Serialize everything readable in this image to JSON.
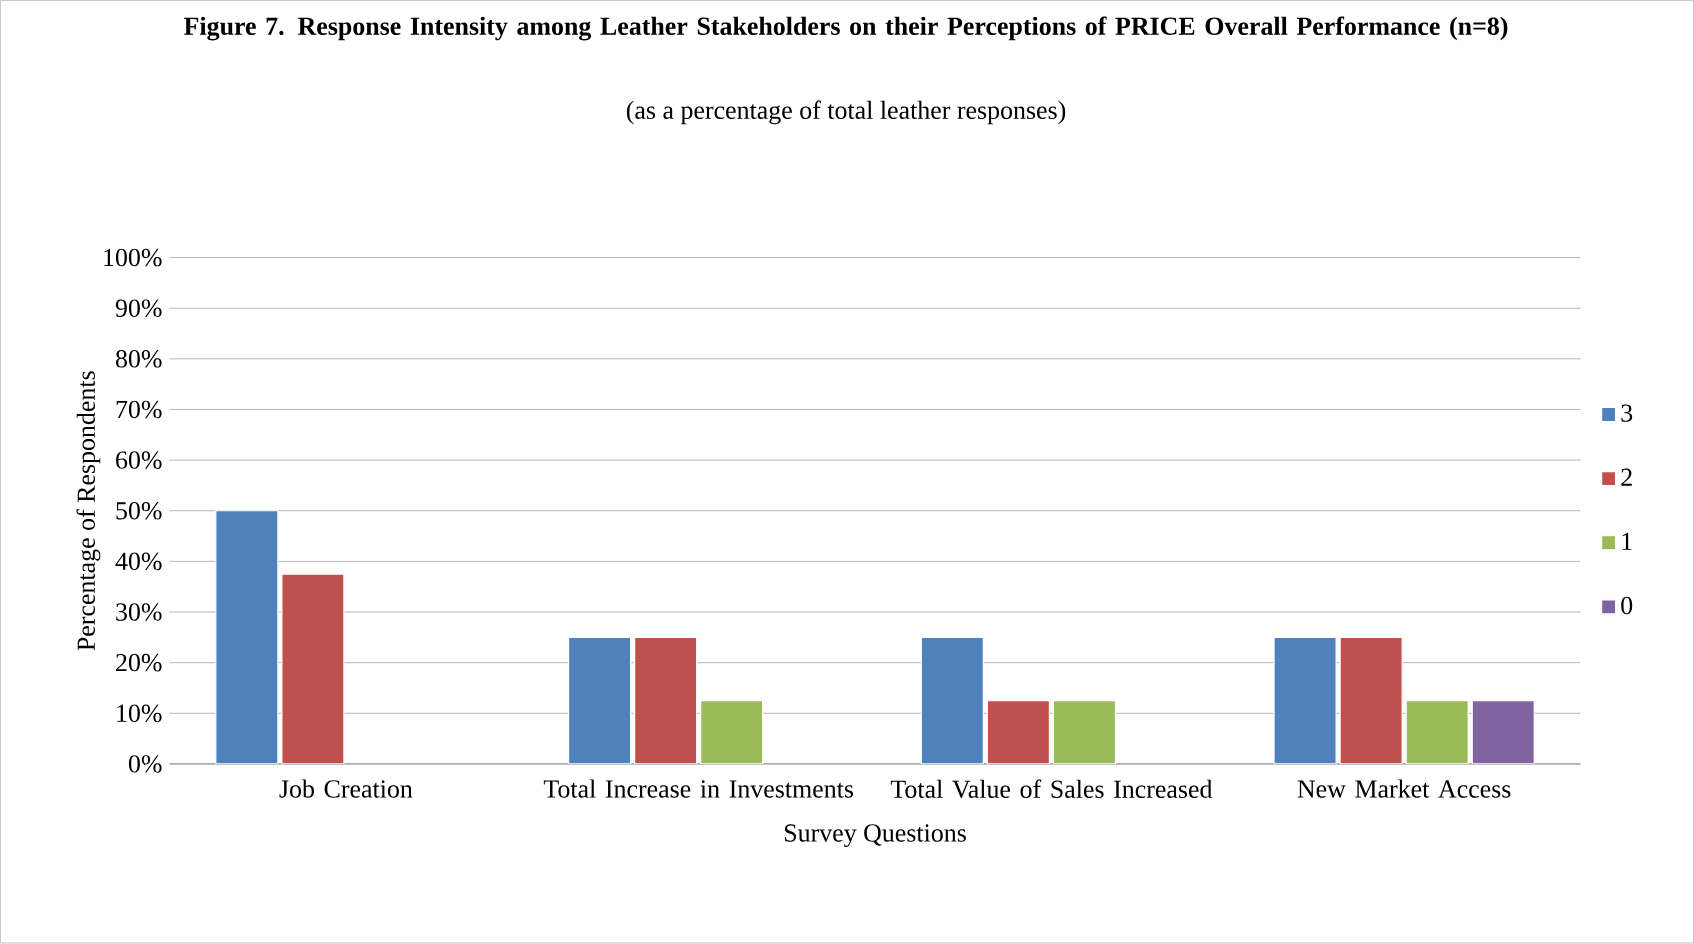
{
  "chart_data": {
    "type": "bar",
    "title": "Figure 7. Response Intensity among Leather Stakeholders on their Perceptions of PRICE Overall Performance (n=8)",
    "subtitle": "(as a percentage of total leather responses)",
    "xlabel": "Survey Questions",
    "ylabel": "Percentage of Respondents",
    "categories": [
      "Job Creation",
      "Total Increase in Investments",
      "Total Value of Sales Increased",
      "New Market Access"
    ],
    "series": [
      {
        "name": "3",
        "color": "#4f81bd",
        "values": [
          50,
          25,
          25,
          25
        ]
      },
      {
        "name": "2",
        "color": "#c0504d",
        "values": [
          37.5,
          25,
          12.5,
          25
        ]
      },
      {
        "name": "1",
        "color": "#9bbb59",
        "values": [
          null,
          12.5,
          12.5,
          12.5
        ]
      },
      {
        "name": "0",
        "color": "#8064a2",
        "values": [
          null,
          null,
          null,
          12.5
        ]
      }
    ],
    "ylim": [
      0,
      100
    ],
    "yticks": [
      {
        "value": 0,
        "label": "0%"
      },
      {
        "value": 10,
        "label": "10%"
      },
      {
        "value": 20,
        "label": "20%"
      },
      {
        "value": 30,
        "label": "30%"
      },
      {
        "value": 40,
        "label": "40%"
      },
      {
        "value": 50,
        "label": "50%"
      },
      {
        "value": 60,
        "label": "60%"
      },
      {
        "value": 70,
        "label": "70%"
      },
      {
        "value": 80,
        "label": "80%"
      },
      {
        "value": 90,
        "label": "90%"
      },
      {
        "value": 100,
        "label": "100%"
      }
    ],
    "grid": "y",
    "legend": "right"
  }
}
